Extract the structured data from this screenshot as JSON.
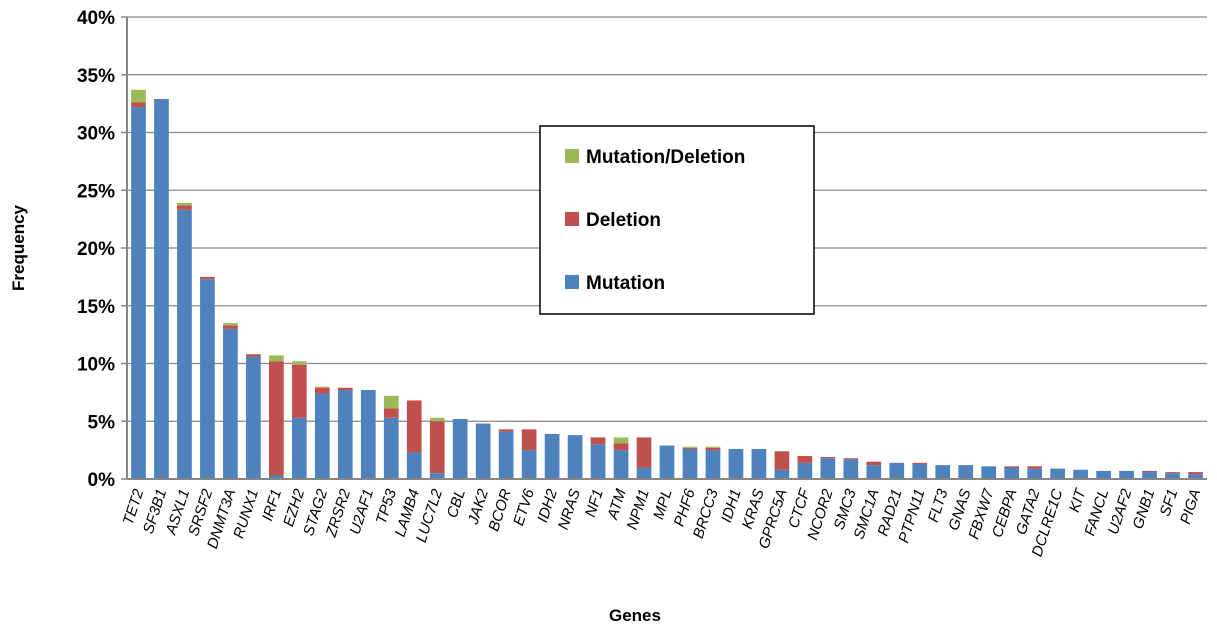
{
  "chart_data": {
    "type": "bar",
    "stacked": true,
    "title": "",
    "xlabel": "Genes",
    "ylabel": "Frequency",
    "ylim": [
      0,
      40
    ],
    "y_ticks": [
      "0%",
      "5%",
      "10%",
      "15%",
      "20%",
      "25%",
      "30%",
      "35%",
      "40%"
    ],
    "grid": true,
    "legend_position": "center",
    "colors": {
      "Mutation": "#4F81BD",
      "Deletion": "#C0504D",
      "Mutation/Deletion": "#9BBB59"
    },
    "categories": [
      "TET2",
      "SF3B1",
      "ASXL1",
      "SRSF2",
      "DNMT3A",
      "RUNX1",
      "IRF1",
      "EZH2",
      "STAG2",
      "ZRSR2",
      "U2AF1",
      "TP53",
      "LAMB4",
      "LUC7L2",
      "CBL",
      "JAK2",
      "BCOR",
      "ETV6",
      "IDH2",
      "NRAS",
      "NF1",
      "ATM",
      "NPM1",
      "MPL",
      "PHF6",
      "BRCC3",
      "IDH1",
      "KRAS",
      "GPRC5A",
      "CTCF",
      "NCOR2",
      "SMC3",
      "SMC1A",
      "RAD21",
      "PTPN11",
      "FLT3",
      "GNAS",
      "FBXW7",
      "CEBPA",
      "GATA2",
      "DCLRE1C",
      "KIT",
      "FANCL",
      "U2AF2",
      "GNB1",
      "SF1",
      "PIGA"
    ],
    "series": [
      {
        "name": "Mutation",
        "values": [
          32.2,
          32.9,
          23.3,
          17.3,
          13.0,
          10.6,
          0.3,
          5.3,
          7.4,
          7.7,
          7.7,
          5.3,
          2.3,
          0.5,
          5.2,
          4.8,
          4.1,
          2.5,
          3.9,
          3.8,
          3.0,
          2.5,
          1.0,
          2.9,
          2.6,
          2.5,
          2.6,
          2.6,
          0.8,
          1.4,
          1.8,
          1.7,
          1.2,
          1.4,
          1.3,
          1.2,
          1.2,
          1.1,
          1.0,
          0.9,
          0.9,
          0.8,
          0.7,
          0.7,
          0.6,
          0.5,
          0.4
        ]
      },
      {
        "name": "Deletion",
        "values": [
          0.4,
          0,
          0.4,
          0.2,
          0.3,
          0.2,
          9.9,
          4.6,
          0.5,
          0.2,
          0,
          0.8,
          4.5,
          4.5,
          0,
          0,
          0.2,
          1.8,
          0,
          0,
          0.6,
          0.6,
          2.6,
          0,
          0.1,
          0.2,
          0,
          0,
          1.6,
          0.6,
          0.1,
          0.1,
          0.3,
          0,
          0.1,
          0,
          0,
          0,
          0.1,
          0.2,
          0,
          0,
          0,
          0,
          0.1,
          0.1,
          0.2
        ]
      },
      {
        "name": "Mutation/Deletion",
        "values": [
          1.1,
          0,
          0.2,
          0,
          0.2,
          0,
          0.5,
          0.3,
          0.1,
          0,
          0,
          1.1,
          0,
          0.3,
          0,
          0,
          0,
          0,
          0,
          0,
          0,
          0.5,
          0,
          0,
          0.1,
          0.1,
          0,
          0,
          0,
          0,
          0,
          0,
          0,
          0,
          0,
          0,
          0,
          0,
          0,
          0,
          0,
          0,
          0,
          0,
          0,
          0,
          0
        ]
      }
    ]
  }
}
